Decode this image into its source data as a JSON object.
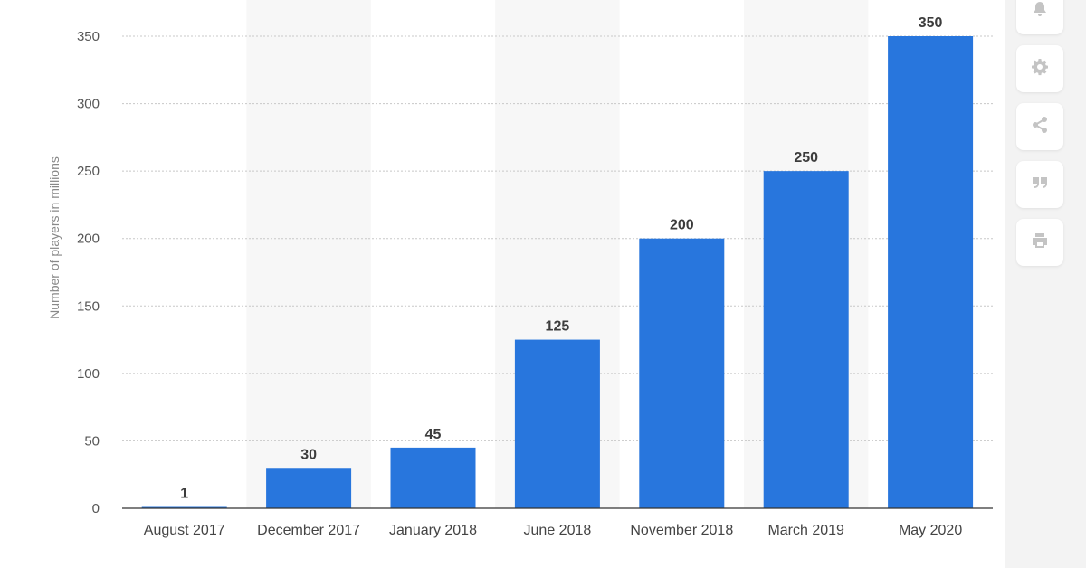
{
  "chart_data": {
    "type": "bar",
    "categories": [
      "August 2017",
      "December 2017",
      "January 2018",
      "June 2018",
      "November 2018",
      "March 2019",
      "May 2020"
    ],
    "values": [
      1,
      30,
      45,
      125,
      200,
      250,
      350
    ],
    "title": "",
    "xlabel": "",
    "ylabel": "Number of players in millions",
    "ylim": [
      0,
      350
    ],
    "yticks": [
      0,
      50,
      100,
      150,
      200,
      250,
      300,
      350
    ],
    "grid": true,
    "bar_color": "#2876dd",
    "band_color": "#f7f7f7",
    "data_labels": true
  },
  "sidebar": {
    "buttons": [
      {
        "name": "notification-button",
        "icon": "bell-icon"
      },
      {
        "name": "settings-button",
        "icon": "gear-icon"
      },
      {
        "name": "share-button",
        "icon": "share-icon"
      },
      {
        "name": "cite-button",
        "icon": "quote-icon"
      },
      {
        "name": "print-button",
        "icon": "print-icon"
      }
    ]
  }
}
